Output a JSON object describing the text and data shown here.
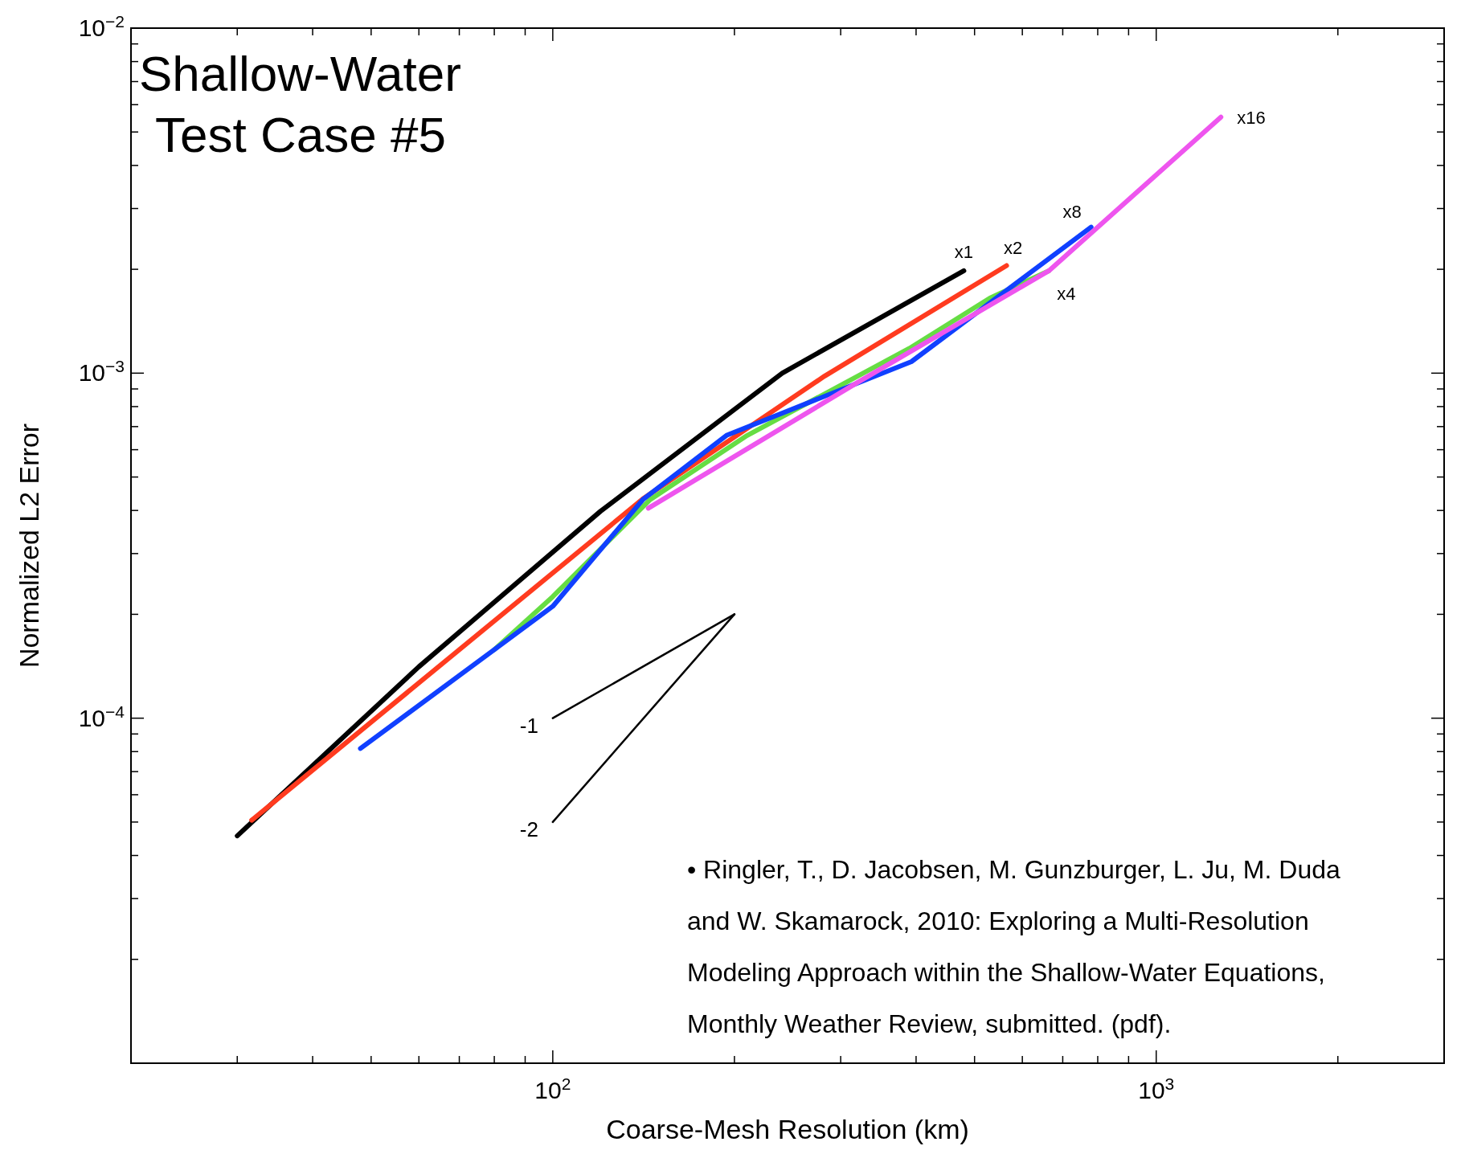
{
  "chart_data": {
    "type": "line",
    "title": "Shallow-Water Test Case #5",
    "xlabel": "Coarse-Mesh Resolution (km)",
    "ylabel": "Normalized L2 Error",
    "log": "xy",
    "grid": false,
    "legend": false,
    "marker": "none",
    "line_style": "solid",
    "xlim": [
      20,
      3000
    ],
    "ylim": [
      1e-05,
      0.01
    ],
    "xticks": [
      {
        "value": 30,
        "label": null
      },
      {
        "value": 40,
        "label": null
      },
      {
        "value": 50,
        "label": null
      },
      {
        "value": 60,
        "label": null
      },
      {
        "value": 70,
        "label": null
      },
      {
        "value": 80,
        "label": null
      },
      {
        "value": 90,
        "label": null
      },
      {
        "value": 100,
        "label": "10$^{2}$"
      },
      {
        "value": 200,
        "label": null
      },
      {
        "value": 300,
        "label": null
      },
      {
        "value": 400,
        "label": null
      },
      {
        "value": 500,
        "label": null
      },
      {
        "value": 600,
        "label": null
      },
      {
        "value": 700,
        "label": null
      },
      {
        "value": 800,
        "label": null
      },
      {
        "value": 900,
        "label": null
      },
      {
        "value": 1000,
        "label": "10$^{3}$"
      },
      {
        "value": 2000,
        "label": null
      }
    ],
    "yticks": [
      {
        "value": 2e-05,
        "label": null
      },
      {
        "value": 3e-05,
        "label": null
      },
      {
        "value": 4e-05,
        "label": null
      },
      {
        "value": 5e-05,
        "label": null
      },
      {
        "value": 6e-05,
        "label": null
      },
      {
        "value": 7e-05,
        "label": null
      },
      {
        "value": 8e-05,
        "label": null
      },
      {
        "value": 9e-05,
        "label": null
      },
      {
        "value": 0.0001,
        "label": "10$^{−4}$"
      },
      {
        "value": 0.0002,
        "label": null
      },
      {
        "value": 0.0003,
        "label": null
      },
      {
        "value": 0.0004,
        "label": null
      },
      {
        "value": 0.0005,
        "label": null
      },
      {
        "value": 0.0006,
        "label": null
      },
      {
        "value": 0.0007,
        "label": null
      },
      {
        "value": 0.0008,
        "label": null
      },
      {
        "value": 0.0009,
        "label": null
      },
      {
        "value": 0.001,
        "label": "10$^{−3}$"
      },
      {
        "value": 0.002,
        "label": null
      },
      {
        "value": 0.003,
        "label": null
      },
      {
        "value": 0.004,
        "label": null
      },
      {
        "value": 0.005,
        "label": null
      },
      {
        "value": 0.006,
        "label": null
      },
      {
        "value": 0.007,
        "label": null
      },
      {
        "value": 0.008,
        "label": null
      },
      {
        "value": 0.009,
        "label": null
      },
      {
        "value": 0.01,
        "label": "10$^{−2}$"
      }
    ],
    "series": [
      {
        "name": "x1",
        "color": "#000000",
        "x": [
          30,
          60,
          120,
          240,
          480
        ],
        "values": [
          4.56e-05,
          0.000141,
          0.000398,
          0.001,
          0.00198
        ]
      },
      {
        "name": "x2",
        "color": "#ff3b1f",
        "x": [
          31.7,
          141,
          282,
          565
        ],
        "values": [
          5.06e-05,
          0.000432,
          0.00098,
          0.00205
        ]
      },
      {
        "name": "x4",
        "color": "#66dd44",
        "x": [
          80,
          100,
          145,
          210,
          390,
          530,
          664
        ],
        "values": [
          0.000158,
          0.000225,
          0.00043,
          0.00066,
          0.00118,
          0.00165,
          0.00198
        ]
      },
      {
        "name": "x8",
        "color": "#1040ff",
        "x": [
          48,
          80,
          100,
          141,
          194,
          393,
          780
        ],
        "values": [
          8.17e-05,
          0.000158,
          0.000211,
          0.00043,
          0.00066,
          0.00108,
          0.00265
        ]
      },
      {
        "name": "x16",
        "color": "#ee55ee",
        "x": [
          144,
          320,
          664,
          1280
        ],
        "values": [
          0.000406,
          0.00094,
          0.00198,
          0.00552
        ]
      },
      {
        "color": "#000000",
        "x": [
          100,
          200
        ],
        "values": [
          0.0001,
          0.0002
        ]
      },
      {
        "color": "#000000",
        "x": [
          100,
          200
        ],
        "values": [
          5e-05,
          0.0002
        ]
      }
    ],
    "annotations": [
      "-1",
      "-2",
      "• Ringler, T., D. Jacobsen, M. Gunzburger, L. Ju, M. Duda and W. Skamarock, 2010: Exploring a Multi-Resolution Modeling Approach within the Shallow-Water Equations, Monthly Weather Review, submitted. (pdf)."
    ]
  }
}
